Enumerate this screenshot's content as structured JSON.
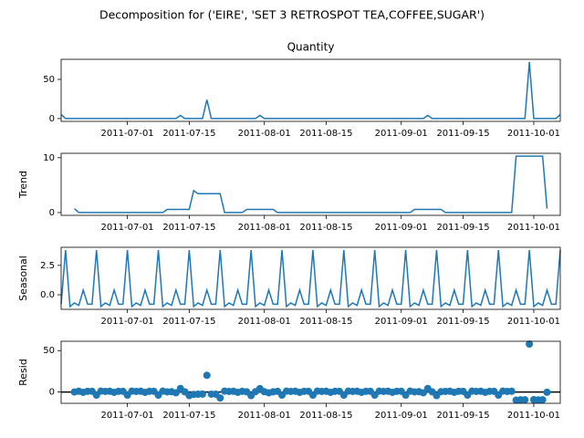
{
  "chart_data": {
    "type": "line",
    "title": "Decomposition for ('EIRE', 'SET 3 RETROSPOT TEA,COFFEE,SUGAR')",
    "x": [
      "2011-06-16",
      "2011-06-17",
      "2011-06-18",
      "2011-06-19",
      "2011-06-20",
      "2011-06-21",
      "2011-06-22",
      "2011-06-23",
      "2011-06-24",
      "2011-06-25",
      "2011-06-26",
      "2011-06-27",
      "2011-06-28",
      "2011-06-29",
      "2011-06-30",
      "2011-07-01",
      "2011-07-02",
      "2011-07-03",
      "2011-07-04",
      "2011-07-05",
      "2011-07-06",
      "2011-07-07",
      "2011-07-08",
      "2011-07-09",
      "2011-07-10",
      "2011-07-11",
      "2011-07-12",
      "2011-07-13",
      "2011-07-14",
      "2011-07-15",
      "2011-07-16",
      "2011-07-17",
      "2011-07-18",
      "2011-07-19",
      "2011-07-20",
      "2011-07-21",
      "2011-07-22",
      "2011-07-23",
      "2011-07-24",
      "2011-07-25",
      "2011-07-26",
      "2011-07-27",
      "2011-07-28",
      "2011-07-29",
      "2011-07-30",
      "2011-07-31",
      "2011-08-01",
      "2011-08-02",
      "2011-08-03",
      "2011-08-04",
      "2011-08-05",
      "2011-08-06",
      "2011-08-07",
      "2011-08-08",
      "2011-08-09",
      "2011-08-10",
      "2011-08-11",
      "2011-08-12",
      "2011-08-13",
      "2011-08-14",
      "2011-08-15",
      "2011-08-16",
      "2011-08-17",
      "2011-08-18",
      "2011-08-19",
      "2011-08-20",
      "2011-08-21",
      "2011-08-22",
      "2011-08-23",
      "2011-08-24",
      "2011-08-25",
      "2011-08-26",
      "2011-08-27",
      "2011-08-28",
      "2011-08-29",
      "2011-08-30",
      "2011-08-31",
      "2011-09-01",
      "2011-09-02",
      "2011-09-03",
      "2011-09-04",
      "2011-09-05",
      "2011-09-06",
      "2011-09-07",
      "2011-09-08",
      "2011-09-09",
      "2011-09-10",
      "2011-09-11",
      "2011-09-12",
      "2011-09-13",
      "2011-09-14",
      "2011-09-15",
      "2011-09-16",
      "2011-09-17",
      "2011-09-18",
      "2011-09-19",
      "2011-09-20",
      "2011-09-21",
      "2011-09-22",
      "2011-09-23",
      "2011-09-24",
      "2011-09-25",
      "2011-09-26",
      "2011-09-27",
      "2011-09-28",
      "2011-09-29",
      "2011-09-30",
      "2011-10-01",
      "2011-10-02",
      "2011-10-03",
      "2011-10-04",
      "2011-10-05",
      "2011-10-06",
      "2011-10-07"
    ],
    "xlim": [
      "2011-06-16",
      "2011-10-07"
    ],
    "xticks": [
      "2011-07-01",
      "2011-07-15",
      "2011-08-01",
      "2011-08-15",
      "2011-09-01",
      "2011-09-15",
      "2011-10-01"
    ],
    "panels": [
      {
        "type": "line",
        "title": "Quantity",
        "color": "#1f77b4",
        "ylim": [
          -3.6,
          75.6
        ],
        "yticks": [
          0,
          50
        ],
        "values": [
          5,
          0,
          0,
          0,
          0,
          0,
          0,
          0,
          0,
          0,
          0,
          0,
          0,
          0,
          0,
          0,
          0,
          0,
          0,
          0,
          0,
          0,
          0,
          0,
          0,
          0,
          0,
          4,
          0,
          0,
          0,
          0,
          0,
          24,
          0,
          0,
          0,
          0,
          0,
          0,
          0,
          0,
          0,
          0,
          0,
          4,
          0,
          0,
          0,
          0,
          0,
          0,
          0,
          0,
          0,
          0,
          0,
          0,
          0,
          0,
          0,
          0,
          0,
          0,
          0,
          0,
          0,
          0,
          0,
          0,
          0,
          0,
          0,
          0,
          0,
          0,
          0,
          0,
          0,
          0,
          0,
          0,
          0,
          4,
          0,
          0,
          0,
          0,
          0,
          0,
          0,
          0,
          0,
          0,
          0,
          0,
          0,
          0,
          0,
          0,
          0,
          0,
          0,
          0,
          0,
          0,
          72,
          0,
          0,
          0,
          0,
          0,
          0,
          5
        ]
      },
      {
        "type": "line",
        "ylabel": "Trend",
        "color": "#1f77b4",
        "ylim": [
          -0.51,
          10.8
        ],
        "yticks": [
          0,
          10
        ],
        "values": [
          null,
          null,
          null,
          0.71,
          0,
          0,
          0,
          0,
          0,
          0,
          0,
          0,
          0,
          0,
          0,
          0,
          0,
          0,
          0,
          0,
          0,
          0,
          0,
          0,
          0.57,
          0.57,
          0.57,
          0.57,
          0.57,
          0.57,
          4,
          3.43,
          3.43,
          3.43,
          3.43,
          3.43,
          3.43,
          0,
          0,
          0,
          0,
          0,
          0.57,
          0.57,
          0.57,
          0.57,
          0.57,
          0.57,
          0.57,
          0,
          0,
          0,
          0,
          0,
          0,
          0,
          0,
          0,
          0,
          0,
          0,
          0,
          0,
          0,
          0,
          0,
          0,
          0,
          0,
          0,
          0,
          0,
          0,
          0,
          0,
          0,
          0,
          0,
          0,
          0,
          0.57,
          0.57,
          0.57,
          0.57,
          0.57,
          0.57,
          0.57,
          0,
          0,
          0,
          0,
          0,
          0,
          0,
          0,
          0,
          0,
          0,
          0,
          0,
          0,
          0,
          0,
          10.29,
          10.29,
          10.29,
          10.29,
          10.29,
          10.29,
          10.29,
          0.71,
          null,
          null,
          null
        ]
      },
      {
        "type": "line",
        "ylabel": "Seasonal",
        "color": "#1f77b4",
        "ylim": [
          -1.24,
          4.04
        ],
        "yticks": [
          {
            "value": 0,
            "label": "0.0"
          },
          {
            "value": 2.5,
            "label": "2.5"
          }
        ],
        "values": [
          -0.8,
          3.8,
          -1.0,
          -0.7,
          -0.9,
          0.4,
          -0.8,
          -0.8,
          3.8,
          -1.0,
          -0.7,
          -0.9,
          0.4,
          -0.8,
          -0.8,
          3.8,
          -1.0,
          -0.7,
          -0.9,
          0.4,
          -0.8,
          -0.8,
          3.8,
          -1.0,
          -0.7,
          -0.9,
          0.4,
          -0.8,
          -0.8,
          3.8,
          -1.0,
          -0.7,
          -0.9,
          0.4,
          -0.8,
          -0.8,
          3.8,
          -1.0,
          -0.7,
          -0.9,
          0.4,
          -0.8,
          -0.8,
          3.8,
          -1.0,
          -0.7,
          -0.9,
          0.4,
          -0.8,
          -0.8,
          3.8,
          -1.0,
          -0.7,
          -0.9,
          0.4,
          -0.8,
          -0.8,
          3.8,
          -1.0,
          -0.7,
          -0.9,
          0.4,
          -0.8,
          -0.8,
          3.8,
          -1.0,
          -0.7,
          -0.9,
          0.4,
          -0.8,
          -0.8,
          3.8,
          -1.0,
          -0.7,
          -0.9,
          0.4,
          -0.8,
          -0.8,
          3.8,
          -1.0,
          -0.7,
          -0.9,
          0.4,
          -0.8,
          -0.8,
          3.8,
          -1.0,
          -0.7,
          -0.9,
          0.4,
          -0.8,
          -0.8,
          3.8,
          -1.0,
          -0.7,
          -0.9,
          0.4,
          -0.8,
          -0.8,
          3.8,
          -1.0,
          -0.7,
          -0.9,
          0.4,
          -0.8,
          -0.8,
          3.8,
          -1.0,
          -0.7,
          -0.9,
          0.4,
          -0.8,
          -0.8,
          3.8
        ]
      },
      {
        "type": "scatter",
        "ylabel": "Resid",
        "color": "#1f77b4",
        "zero_line": true,
        "ylim": [
          -13.7,
          61.3
        ],
        "yticks": [
          0,
          50
        ],
        "values": [
          null,
          null,
          null,
          -0.01,
          0.9,
          -0.4,
          0.8,
          0.8,
          -3.8,
          1.0,
          0.7,
          0.9,
          -0.4,
          0.8,
          0.8,
          -3.8,
          1.0,
          0.7,
          0.9,
          -0.4,
          0.8,
          0.8,
          -3.8,
          1.0,
          0.13,
          0.33,
          -0.97,
          4.23,
          0.23,
          -4.37,
          -3,
          -2.73,
          -2.53,
          20.17,
          -2.63,
          -2.63,
          -7.23,
          1.0,
          0.7,
          0.9,
          -0.4,
          0.8,
          0.23,
          -4.37,
          0.43,
          4.13,
          0.33,
          -0.97,
          0.23,
          0.8,
          -3.8,
          1.0,
          0.7,
          0.9,
          -0.4,
          0.8,
          0.8,
          -3.8,
          1.0,
          0.7,
          0.9,
          -0.4,
          0.8,
          0.8,
          -3.8,
          1.0,
          0.7,
          0.9,
          -0.4,
          0.8,
          0.8,
          -3.8,
          1.0,
          0.7,
          0.9,
          -0.4,
          0.8,
          0.8,
          -3.8,
          1.0,
          0.13,
          0.33,
          -0.97,
          4.23,
          0.23,
          -4.37,
          0.43,
          0.7,
          0.9,
          -0.4,
          0.8,
          0.8,
          -3.8,
          1.0,
          0.7,
          0.9,
          -0.4,
          0.8,
          0.8,
          -3.8,
          1.0,
          0.7,
          0.9,
          -9.89,
          -9.49,
          -9.49,
          57.91,
          -9.29,
          -9.59,
          -9.39,
          -0.31,
          null,
          null,
          null
        ]
      }
    ]
  }
}
